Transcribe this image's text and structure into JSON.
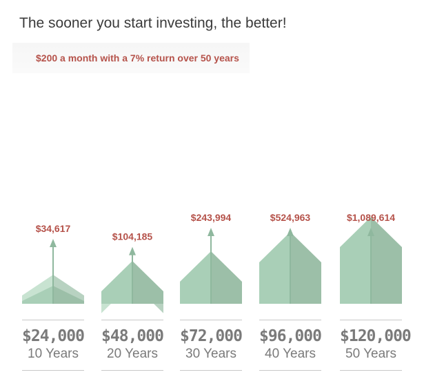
{
  "header": {
    "title": "The sooner you start investing, the better!",
    "subtitle": "$200 a month with a 7% return over 50 years"
  },
  "colors": {
    "light_green": "#c5e1cf",
    "light_green_shade": "#b5cebe",
    "mid_green": "#a6cdb4",
    "mid_green_shade": "#9abd a6",
    "arrow": "#8fb89e",
    "value_label": "#b5524a",
    "axis_text": "#7a7a7a"
  },
  "chart_data": {
    "type": "bar",
    "categories": [
      "10 Years",
      "20 Years",
      "30 Years",
      "40 Years",
      "50 Years"
    ],
    "contributions": [
      "$24,000",
      "$48,000",
      "$72,000",
      "$96,000",
      "$120,000"
    ],
    "contribution_values": [
      24000,
      48000,
      72000,
      96000,
      120000
    ],
    "value_labels": [
      "$34,617",
      "$104,185",
      "$243,994",
      "$524,963",
      "$1,089,614"
    ],
    "values": [
      34617,
      104185,
      243994,
      524963,
      1089614
    ],
    "title": "The sooner you start investing, the better!",
    "subtitle": "$200 a month with a 7% return over 50 years"
  }
}
